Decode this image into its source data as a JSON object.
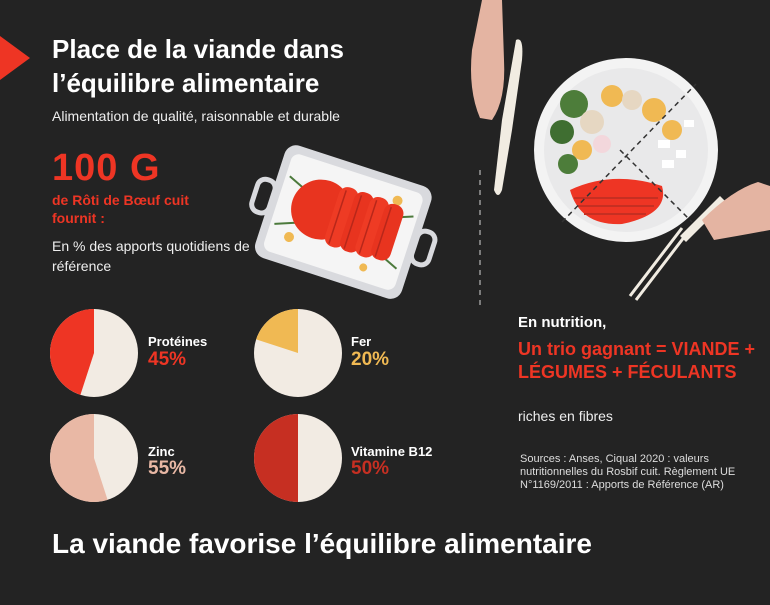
{
  "header": {
    "title": "Place de la viande dans l’équilibre alimentaire",
    "subtitle": "Alimentation de qualité, raisonnable et durable"
  },
  "portion": {
    "amount": "100 G",
    "description": "de Rôti de Bœuf cuit fournit :",
    "note": "En % des apports quotidiens de référence"
  },
  "nutrients": [
    {
      "label": "Protéines",
      "value_text": "45%",
      "fraction": 0.45,
      "color": "#ee3524",
      "track": "#f2ebe3"
    },
    {
      "label": "Fer",
      "value_text": "20%",
      "fraction": 0.2,
      "color": "#f0b953",
      "track": "#f2ebe3"
    },
    {
      "label": "Zinc",
      "value_text": "55%",
      "fraction": 0.55,
      "color": "#e9b8a5",
      "track": "#f2ebe3"
    },
    {
      "label": "Vitamine B12",
      "value_text": "50%",
      "fraction": 0.5,
      "color": "#c62f22",
      "track": "#f2ebe3"
    }
  ],
  "nutrition": {
    "heading": "En nutrition,",
    "trio": "Un trio gagnant = VIANDE + LÉGUMES + FÉCULANTS",
    "fibres": "riches en fibres"
  },
  "sources": "Sources : Anses, Ciqual 2020 : valeurs nutritionnelles du Rosbif cuit. Règlement UE N°1169/2011 : Apports de Référence (AR)",
  "footer": "La viande favorise l’équilibre alimentaire",
  "colors": {
    "background": "#232323",
    "accent": "#ee3524",
    "yellow": "#f0b953",
    "pink": "#e9b8a5",
    "darkred": "#c62f22"
  }
}
